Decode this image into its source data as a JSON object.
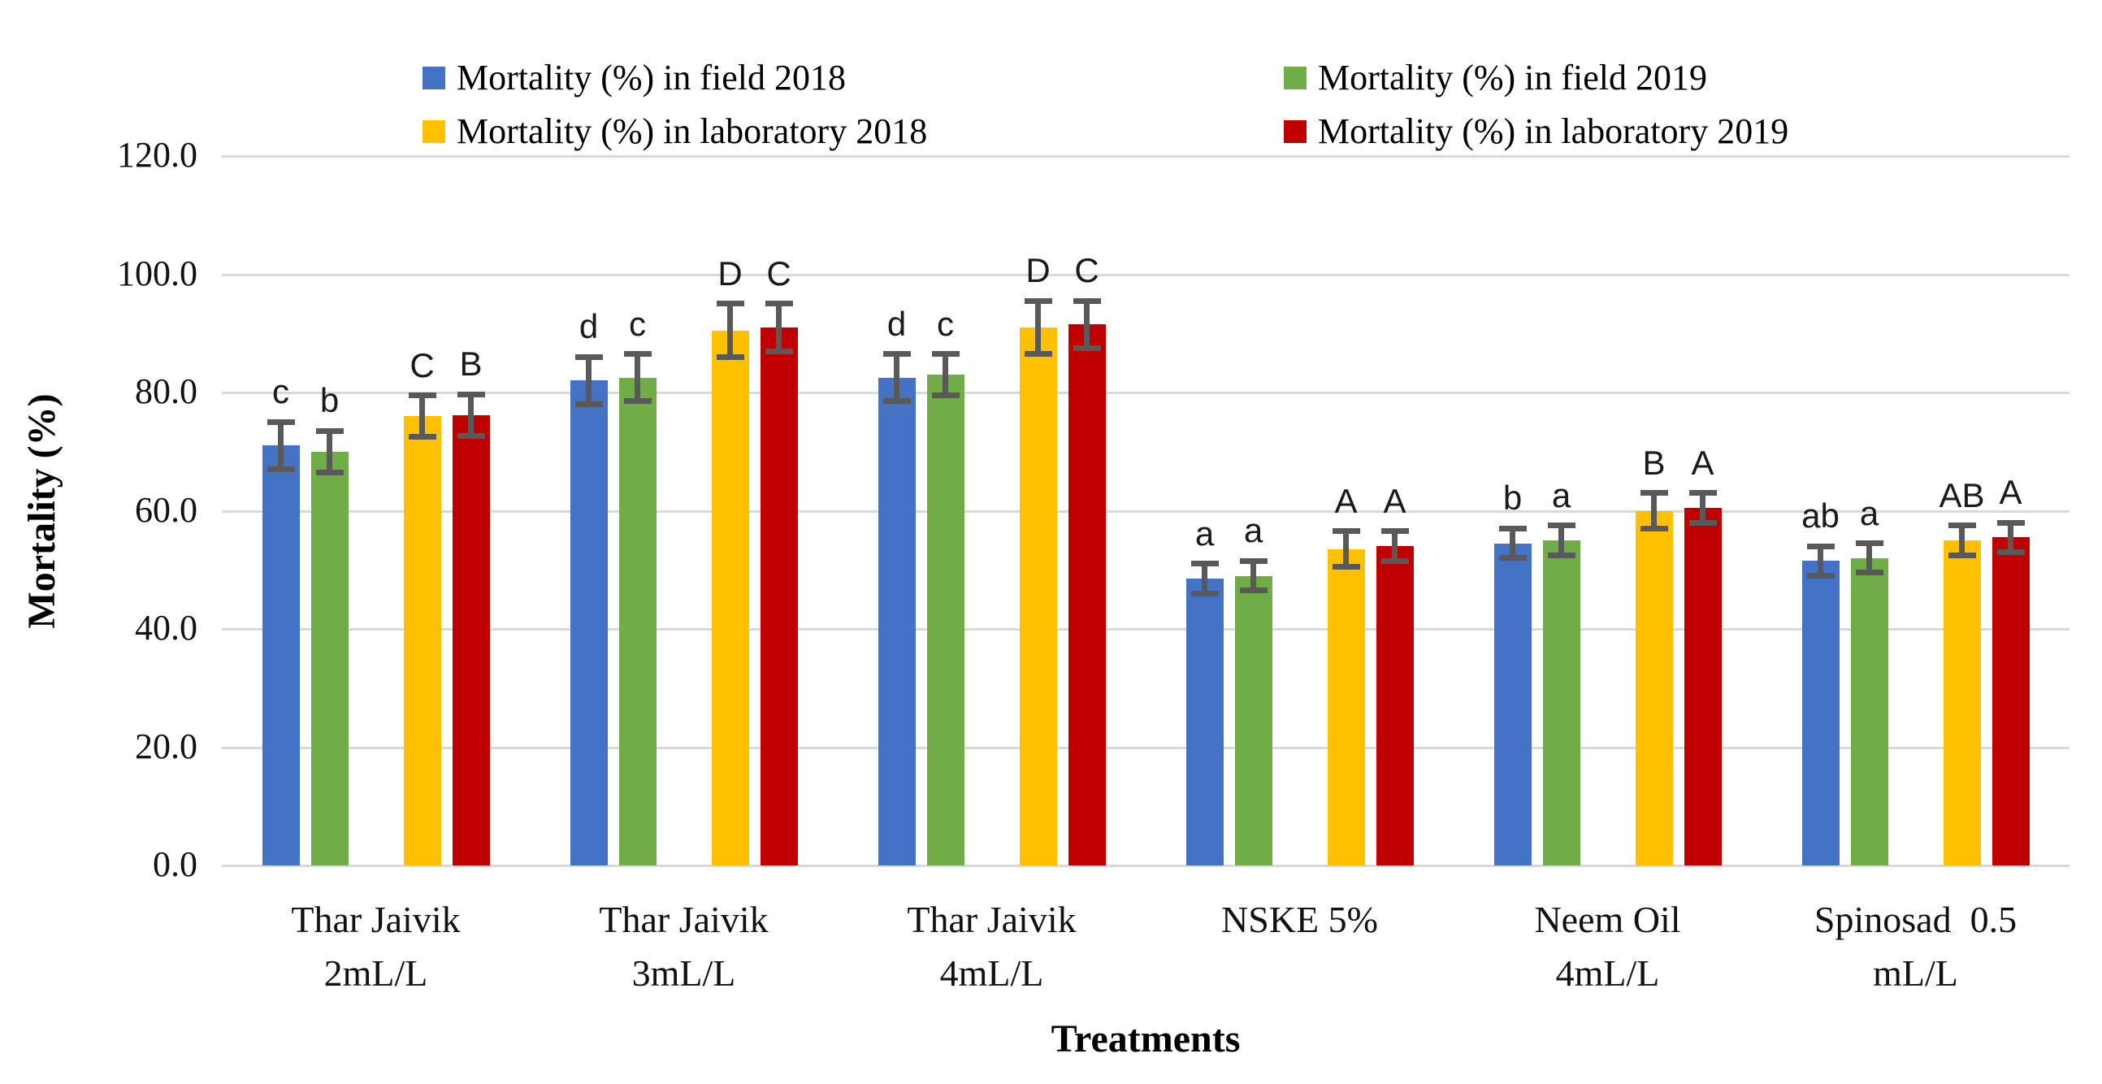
{
  "figure": {
    "background": "#ffffff"
  },
  "chart_data": {
    "type": "bar",
    "title": "",
    "xlabel": "Treatments",
    "ylabel": "Mortality (%)",
    "ylim": [
      0,
      120
    ],
    "grid": true,
    "legend_position": "top, two columns, two rows",
    "yticks": [
      {
        "value": 120,
        "label": "120.0"
      },
      {
        "value": 100,
        "label": "100.0"
      },
      {
        "value": 80,
        "label": "80.0"
      },
      {
        "value": 60,
        "label": "60.0"
      },
      {
        "value": 40,
        "label": "40.0"
      },
      {
        "value": 20,
        "label": "20.0"
      },
      {
        "value": 0,
        "label": "0.0"
      }
    ],
    "categories": [
      "Thar Jaivik\n2mL/L",
      "Thar Jaivik\n3mL/L",
      "Thar Jaivik\n4mL/L",
      "NSKE 5%",
      "Neem Oil\n4mL/L",
      "Spinosad  0.5\nmL/L"
    ],
    "series": [
      {
        "name": "Mortality (%) in field 2018",
        "color": "#4472C4",
        "values": [
          71,
          82,
          82.5,
          48.5,
          54.5,
          51.5
        ],
        "errors": [
          4,
          4,
          4,
          2.5,
          2.5,
          2.5
        ],
        "letters": [
          "c",
          "d",
          "d",
          "a",
          "b",
          "ab"
        ]
      },
      {
        "name": "Mortality (%) in field 2019",
        "color": "#70AD47",
        "values": [
          70,
          82.5,
          83,
          49,
          55,
          52
        ],
        "errors": [
          3.5,
          4,
          3.5,
          2.5,
          2.5,
          2.5
        ],
        "letters": [
          "b",
          "c",
          "c",
          "a",
          "a",
          "a"
        ]
      },
      {
        "name": "Mortality (%) in laboratory 2018",
        "color": "#FFC000",
        "values": [
          76,
          90.5,
          91,
          53.5,
          60,
          55
        ],
        "errors": [
          3.5,
          4.5,
          4.5,
          3,
          3,
          2.5
        ],
        "letters": [
          "C",
          "D",
          "D",
          "A",
          "B",
          "AB"
        ]
      },
      {
        "name": "Mortality (%) in laboratory 2019",
        "color": "#C00000",
        "values": [
          76.2,
          91,
          91.5,
          54,
          60.5,
          55.5
        ],
        "errors": [
          3.5,
          4,
          4,
          2.5,
          2.5,
          2.5
        ],
        "letters": [
          "B",
          "C",
          "C",
          "A",
          "A",
          "A"
        ]
      }
    ],
    "colors": {
      "gridline": "#d9d9d9",
      "error_bar": "#595959",
      "text": "#000000"
    }
  }
}
